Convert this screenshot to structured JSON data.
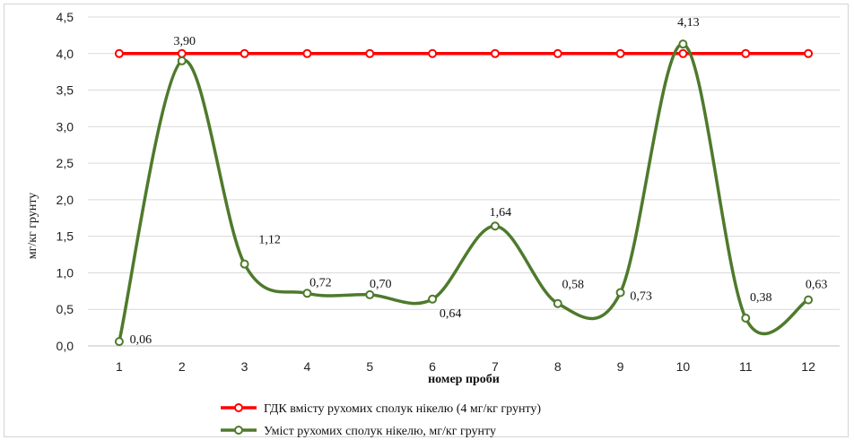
{
  "chart_data": {
    "type": "line",
    "title": "",
    "xlabel": "номер проби",
    "ylabel": "мг/кг грунту",
    "x": [
      1,
      2,
      3,
      4,
      5,
      6,
      7,
      8,
      9,
      10,
      11,
      12
    ],
    "xticks": [
      "1",
      "2",
      "3",
      "4",
      "5",
      "6",
      "7",
      "8",
      "9",
      "10",
      "11",
      "12"
    ],
    "ylim": [
      0,
      4.5
    ],
    "yticks": [
      "0,0",
      "0,5",
      "1,0",
      "1,5",
      "2,0",
      "2,5",
      "3,0",
      "3,5",
      "4,0",
      "4,5"
    ],
    "grid": "horizontal",
    "legend_position": "bottom",
    "series": [
      {
        "name": "ГДК вмісту рухомих сполук нікелю (4 мг/кг грунту)",
        "color": "#ff0000",
        "smooth": false,
        "values": [
          4,
          4,
          4,
          4,
          4,
          4,
          4,
          4,
          4,
          4,
          4,
          4
        ]
      },
      {
        "name": "Уміст рухомих сполук нікелю, мг/кг грунту",
        "color": "#4e7a2c",
        "smooth": true,
        "values": [
          0.06,
          3.9,
          1.12,
          0.72,
          0.7,
          0.64,
          1.64,
          0.58,
          0.73,
          4.13,
          0.38,
          0.63
        ],
        "labels": [
          "0,06",
          "3,90",
          "1,12",
          "0,72",
          "0,70",
          "0,64",
          "1,64",
          "0,58",
          "0,73",
          "4,13",
          "0,38",
          "0,63"
        ]
      }
    ]
  }
}
